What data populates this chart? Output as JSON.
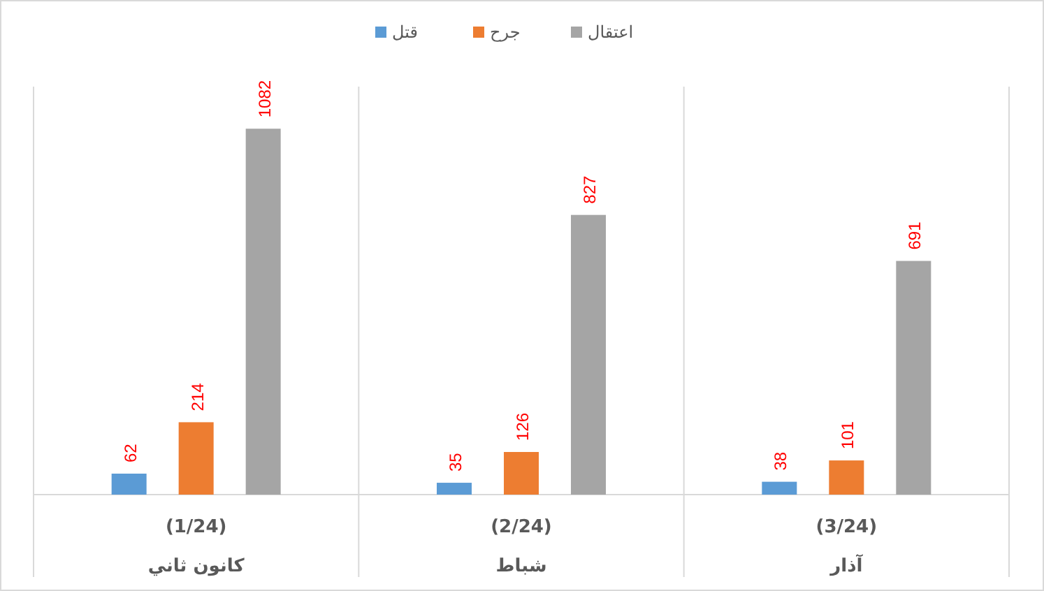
{
  "chart_data": {
    "type": "bar",
    "categories": [
      "(1/24)\nكانون ثاني",
      "(2/24)\nشباط",
      "(3/24)\nآذار"
    ],
    "series": [
      {
        "name": "قتل",
        "color": "#5b9bd5",
        "values": [
          62,
          35,
          38
        ]
      },
      {
        "name": "جرح",
        "color": "#ed7d31",
        "values": [
          214,
          126,
          101
        ]
      },
      {
        "name": "اعتقال",
        "color": "#a5a5a5",
        "values": [
          1082,
          827,
          691
        ]
      }
    ],
    "data_labels": true,
    "legend": "top"
  }
}
